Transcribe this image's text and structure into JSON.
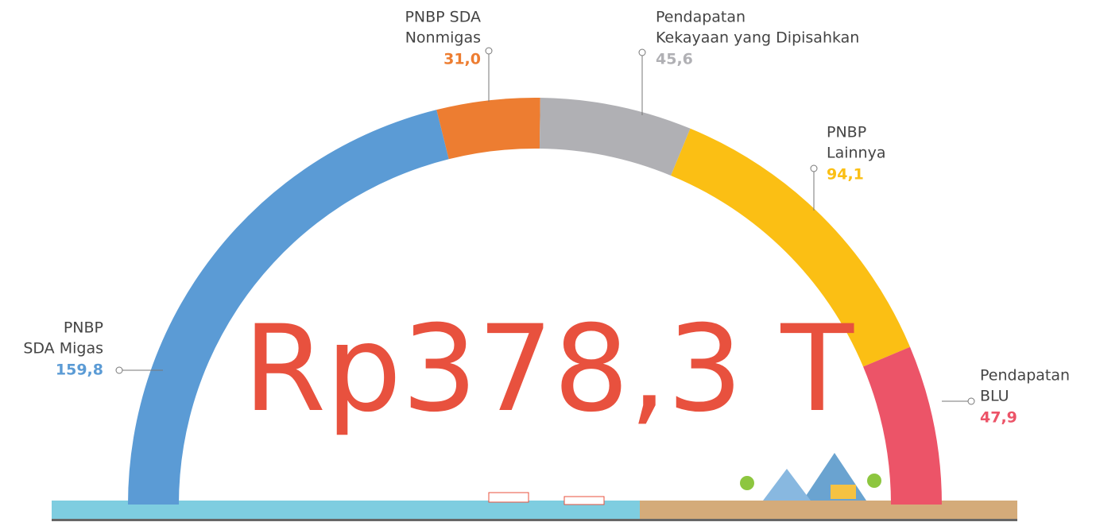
{
  "chart_data": {
    "type": "pie",
    "shape": "half-donut",
    "center_label": "Rp378,3 T",
    "categories": [
      [
        "PNBP",
        "SDA Migas"
      ],
      [
        "PNBP SDA",
        "Nonmigas"
      ],
      [
        "Pendapatan",
        "Kekayaan yang Dipisahkan"
      ],
      [
        "PNBP",
        "Lainnya"
      ],
      [
        "Pendapatan",
        "BLU"
      ]
    ],
    "values": [
      159.8,
      31.0,
      45.6,
      94.1,
      47.9
    ],
    "value_labels": [
      "159,8",
      "31,0",
      "45,6",
      "94,1",
      "47,9"
    ],
    "colors": [
      "#5b9bd5",
      "#ed7d31",
      "#b0b0b4",
      "#fbbf14",
      "#ec5468"
    ]
  }
}
